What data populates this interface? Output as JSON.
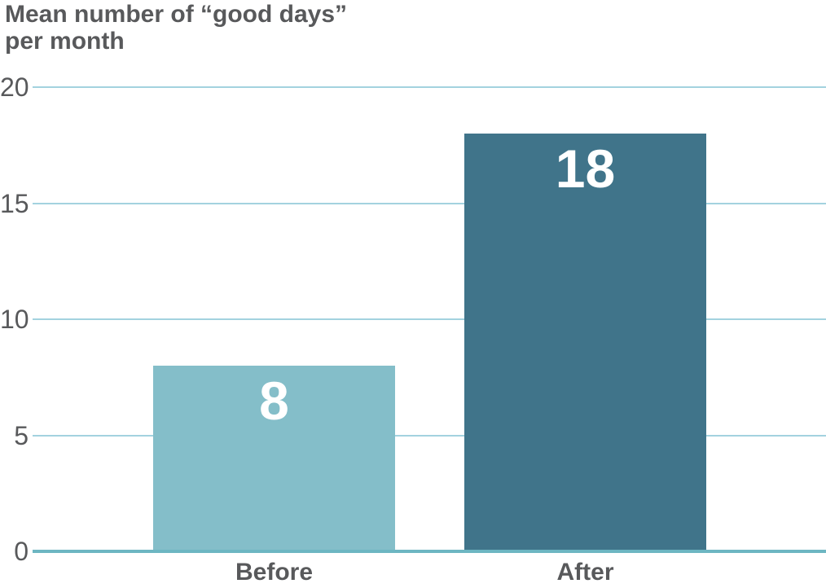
{
  "chart_data": {
    "type": "bar",
    "title": "Mean number of “good days”\nper month",
    "categories": [
      "Before",
      "After"
    ],
    "values": [
      8,
      18
    ],
    "data_labels": [
      "8",
      "18"
    ],
    "ylim": [
      0,
      20
    ],
    "yticks": [
      0,
      5,
      10,
      15,
      20
    ],
    "grid": "horizontal gridlines behind bars",
    "legend": "none",
    "bar_colors": [
      "#84bec9",
      "#40748a"
    ],
    "value_label_color": "#ffffff",
    "gridline_color": "#a3d2df",
    "axis_line_color": "#6db6c2",
    "text_color": "#58595b",
    "background_color": "#ffffff"
  }
}
